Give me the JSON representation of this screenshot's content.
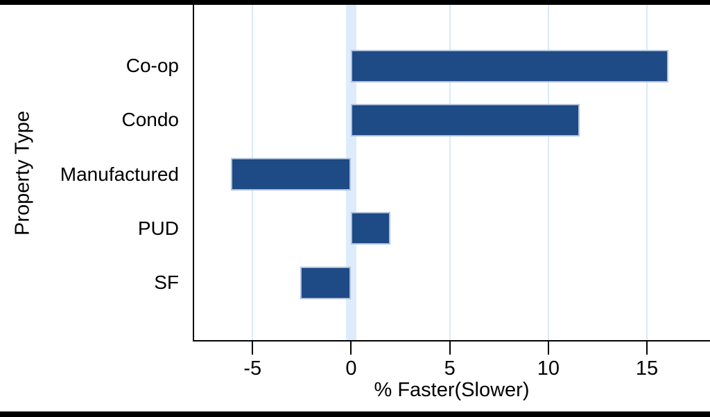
{
  "chart_data": {
    "type": "bar",
    "orientation": "horizontal",
    "title": "",
    "categories": [
      "Co-op",
      "Condo",
      "Manufactured",
      "PUD",
      "SF"
    ],
    "values": [
      16.1,
      11.6,
      -6.1,
      2.0,
      -2.6
    ],
    "xlabel": "% Faster(Slower)",
    "ylabel": "Property Type",
    "xlim": [
      -8.0,
      18.2
    ],
    "xticks": [
      -5,
      0,
      5,
      10,
      15
    ],
    "xtick_labels": [
      "-5",
      "0",
      "5",
      "10",
      "15"
    ],
    "gridlines_at": [
      -5,
      5,
      10,
      15
    ],
    "zero_line": 0,
    "grid": true,
    "legend": false,
    "colors": {
      "bar_fill": "#1e4a85",
      "bar_border": "#b0c2da",
      "gridline": "#d8eaf8",
      "zero_band": "#dcecfa",
      "axis": "#000000",
      "frame_border": "#000000",
      "background": "#ffffff"
    }
  }
}
